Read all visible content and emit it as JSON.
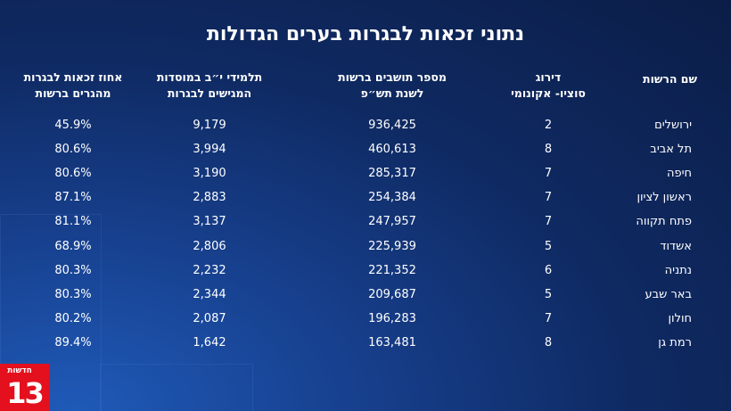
{
  "title": "נתוני זכאות לבגרות בערים הגדולות",
  "table": {
    "headers": [
      [
        "שם הרשות"
      ],
      [
        "דירוג",
        "סוציו- אקונומי"
      ],
      [
        "מספר תושבים ברשות",
        "לשנת תש״פ"
      ],
      [
        "תלמידי י״ב במוסדות",
        "המגישים לבגרות"
      ],
      [
        "אחוז זכאות לבגרות",
        "מהגרים ברשות"
      ]
    ],
    "rows": [
      [
        "ירושלים",
        "2",
        "936,425",
        "9,179",
        "45.9%"
      ],
      [
        "תל אביב",
        "8",
        "460,613",
        "3,994",
        "80.6%"
      ],
      [
        "חיפה",
        "7",
        "285,317",
        "3,190",
        "80.6%"
      ],
      [
        "ראשון לציון",
        "7",
        "254,384",
        "2,883",
        "87.1%"
      ],
      [
        "פתח תקווה",
        "7",
        "247,957",
        "3,137",
        "81.1%"
      ],
      [
        "אשדוד",
        "5",
        "225,939",
        "2,806",
        "68.9%"
      ],
      [
        "נתניה",
        "6",
        "221,352",
        "2,232",
        "80.3%"
      ],
      [
        "באר שבע",
        "5",
        "209,687",
        "2,344",
        "80.3%"
      ],
      [
        "חולון",
        "7",
        "196,283",
        "2,087",
        "80.2%"
      ],
      [
        "רמת גן",
        "8",
        "163,481",
        "1,642",
        "89.4%"
      ]
    ]
  },
  "logo": {
    "text": "חדשות",
    "number": "13"
  }
}
